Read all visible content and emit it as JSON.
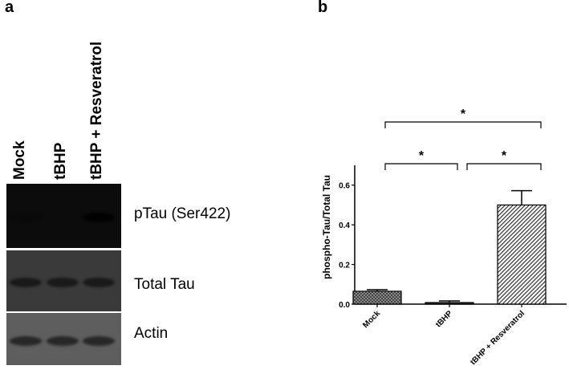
{
  "panel_a": {
    "letter": "a",
    "lanes": [
      "Mock",
      "tBHP",
      "tBHP + Resveratrol"
    ],
    "blots": [
      {
        "label": "pTau (Ser422)",
        "bands": [
          0.1,
          0.0,
          0.85
        ],
        "background": "#0c0c0c",
        "band_color": "#000000"
      },
      {
        "label": "Total Tau",
        "bands": [
          0.9,
          0.9,
          0.9
        ],
        "background": "#3a3a3a",
        "band_color": "#161616"
      },
      {
        "label": "Actin",
        "bands": [
          0.85,
          0.85,
          0.85
        ],
        "background": "#5e5e5e",
        "band_color": "#1e1e1e"
      }
    ]
  },
  "panel_b": {
    "letter": "b"
  },
  "chart_data": {
    "type": "bar",
    "categories": [
      "Mock",
      "tBHP",
      "tBHP + Resveratrol"
    ],
    "values": [
      0.065,
      0.008,
      0.5
    ],
    "errors": [
      0.008,
      0.008,
      0.072
    ],
    "ylabel": "phospho-Tau/Total Tau",
    "xlabel": "",
    "ylim": [
      0,
      0.7
    ],
    "yticks": [
      0.0,
      0.2,
      0.4,
      0.6
    ],
    "ytick_labels": [
      "0.0",
      "0.2",
      "0.4",
      "0.6"
    ],
    "bar_fills": [
      "crosshatch",
      "solid-dark",
      "diagonal-hatch"
    ],
    "significance": [
      {
        "from": 0,
        "to": 1,
        "label": "*"
      },
      {
        "from": 1,
        "to": 2,
        "label": "*"
      },
      {
        "from": 0,
        "to": 2,
        "label": "*"
      }
    ],
    "grid": false,
    "legend": "none"
  }
}
